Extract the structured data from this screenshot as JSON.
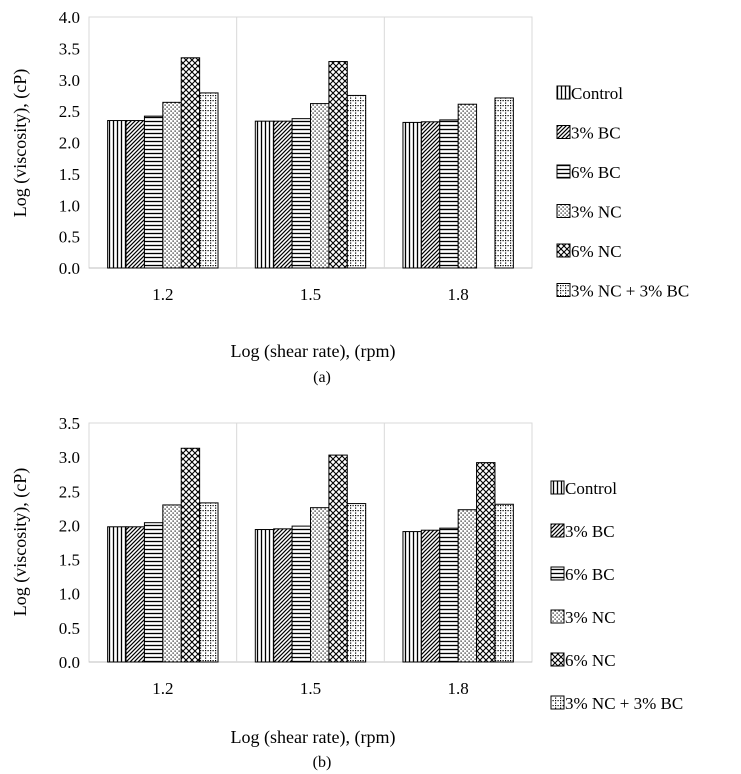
{
  "figure": {
    "panels": [
      {
        "caption": "(a)"
      },
      {
        "caption": "(b)"
      }
    ]
  },
  "chart_data": [
    {
      "type": "bar",
      "title": "",
      "xlabel": "Log (shear rate), (rpm)",
      "ylabel": "Log (viscosity), (cP)",
      "categories": [
        "1.2",
        "1.5",
        "1.8"
      ],
      "ylim": [
        0,
        4.0
      ],
      "yticks": [
        "0.0",
        "0.5",
        "1.0",
        "1.5",
        "2.0",
        "2.5",
        "3.0",
        "3.5",
        "4.0"
      ],
      "grid": "vertical category separators",
      "legend": "right",
      "series": [
        {
          "name": "Control",
          "pattern": "vertical-lines",
          "values": [
            2.35,
            2.34,
            2.32
          ]
        },
        {
          "name": "3% BC",
          "pattern": "diagonal-lines",
          "values": [
            2.35,
            2.34,
            2.33
          ]
        },
        {
          "name": "6% BC",
          "pattern": "horizontal-lines",
          "values": [
            2.42,
            2.38,
            2.36
          ]
        },
        {
          "name": "3% NC",
          "pattern": "dots",
          "values": [
            2.64,
            2.62,
            2.61
          ]
        },
        {
          "name": "6% NC",
          "pattern": "cross-hatch",
          "values": [
            3.35,
            3.29,
            null
          ]
        },
        {
          "name": "3% NC + 3% BC",
          "pattern": "dotted-grid",
          "values": [
            2.79,
            2.75,
            2.71
          ]
        }
      ]
    },
    {
      "type": "bar",
      "title": "",
      "xlabel": "Log (shear rate), (rpm)",
      "ylabel": "Log (viscosity), (cP)",
      "categories": [
        "1.2",
        "1.5",
        "1.8"
      ],
      "ylim": [
        0,
        3.5
      ],
      "yticks": [
        "0.0",
        "0.5",
        "1.0",
        "1.5",
        "2.0",
        "2.5",
        "3.0",
        "3.5"
      ],
      "grid": "vertical category separators",
      "legend": "right",
      "series": [
        {
          "name": "Control",
          "pattern": "vertical-lines",
          "values": [
            1.98,
            1.94,
            1.91
          ]
        },
        {
          "name": "3% BC",
          "pattern": "diagonal-lines",
          "values": [
            1.98,
            1.95,
            1.93
          ]
        },
        {
          "name": "6% BC",
          "pattern": "horizontal-lines",
          "values": [
            2.04,
            1.99,
            1.96
          ]
        },
        {
          "name": "3% NC",
          "pattern": "dots",
          "values": [
            2.3,
            2.26,
            2.23
          ]
        },
        {
          "name": "6% NC",
          "pattern": "cross-hatch",
          "values": [
            3.13,
            3.03,
            2.92
          ]
        },
        {
          "name": "3% NC + 3% BC",
          "pattern": "dotted-grid",
          "values": [
            2.33,
            2.32,
            2.31
          ]
        }
      ]
    }
  ]
}
